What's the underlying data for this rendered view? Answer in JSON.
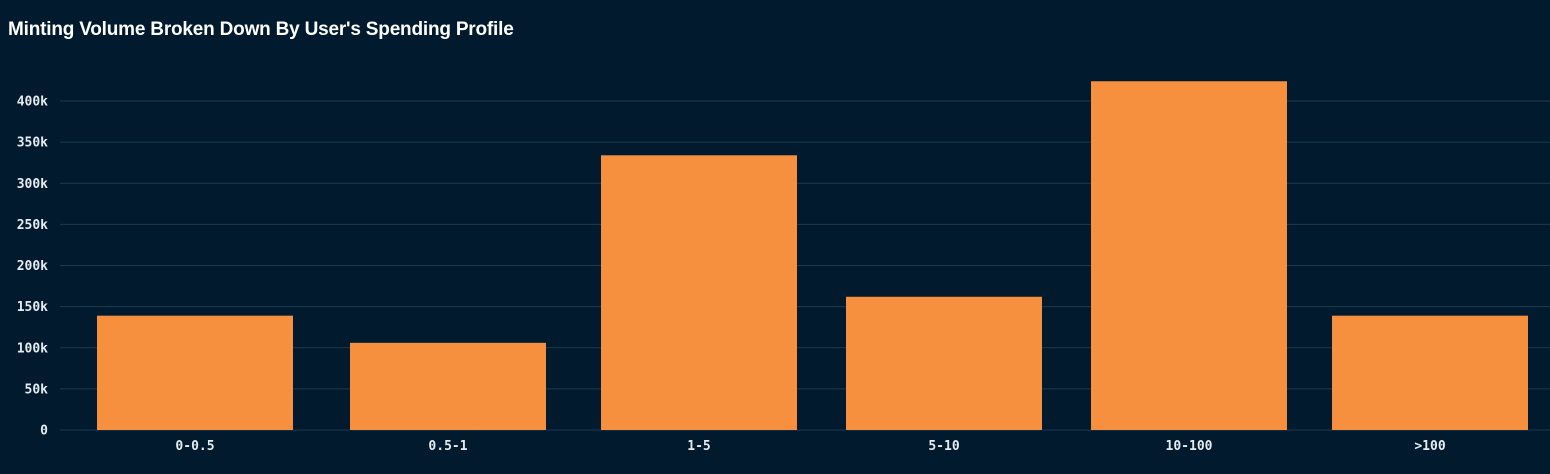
{
  "title": "Minting Volume Broken Down By User's Spending Profile",
  "colors": {
    "background": "#011a2d",
    "bar": "#f6903f",
    "grid": "#1b3a52",
    "text": "#e6ebf0"
  },
  "chart_data": {
    "type": "bar",
    "title": "Minting Volume Broken Down By User's Spending Profile",
    "xlabel": "",
    "ylabel": "",
    "categories": [
      "0-0.5",
      "0.5-1",
      "1-5",
      "5-10",
      "10-100",
      ">100"
    ],
    "values": [
      139000,
      106000,
      334000,
      162000,
      424000,
      139000
    ],
    "ylim": [
      0,
      425000
    ],
    "yticks": [
      0,
      50000,
      100000,
      150000,
      200000,
      250000,
      300000,
      350000,
      400000
    ],
    "ytick_labels": [
      "0",
      "50k",
      "100k",
      "150k",
      "200k",
      "250k",
      "300k",
      "350k",
      "400k"
    ],
    "grid": true,
    "legend": "none"
  }
}
